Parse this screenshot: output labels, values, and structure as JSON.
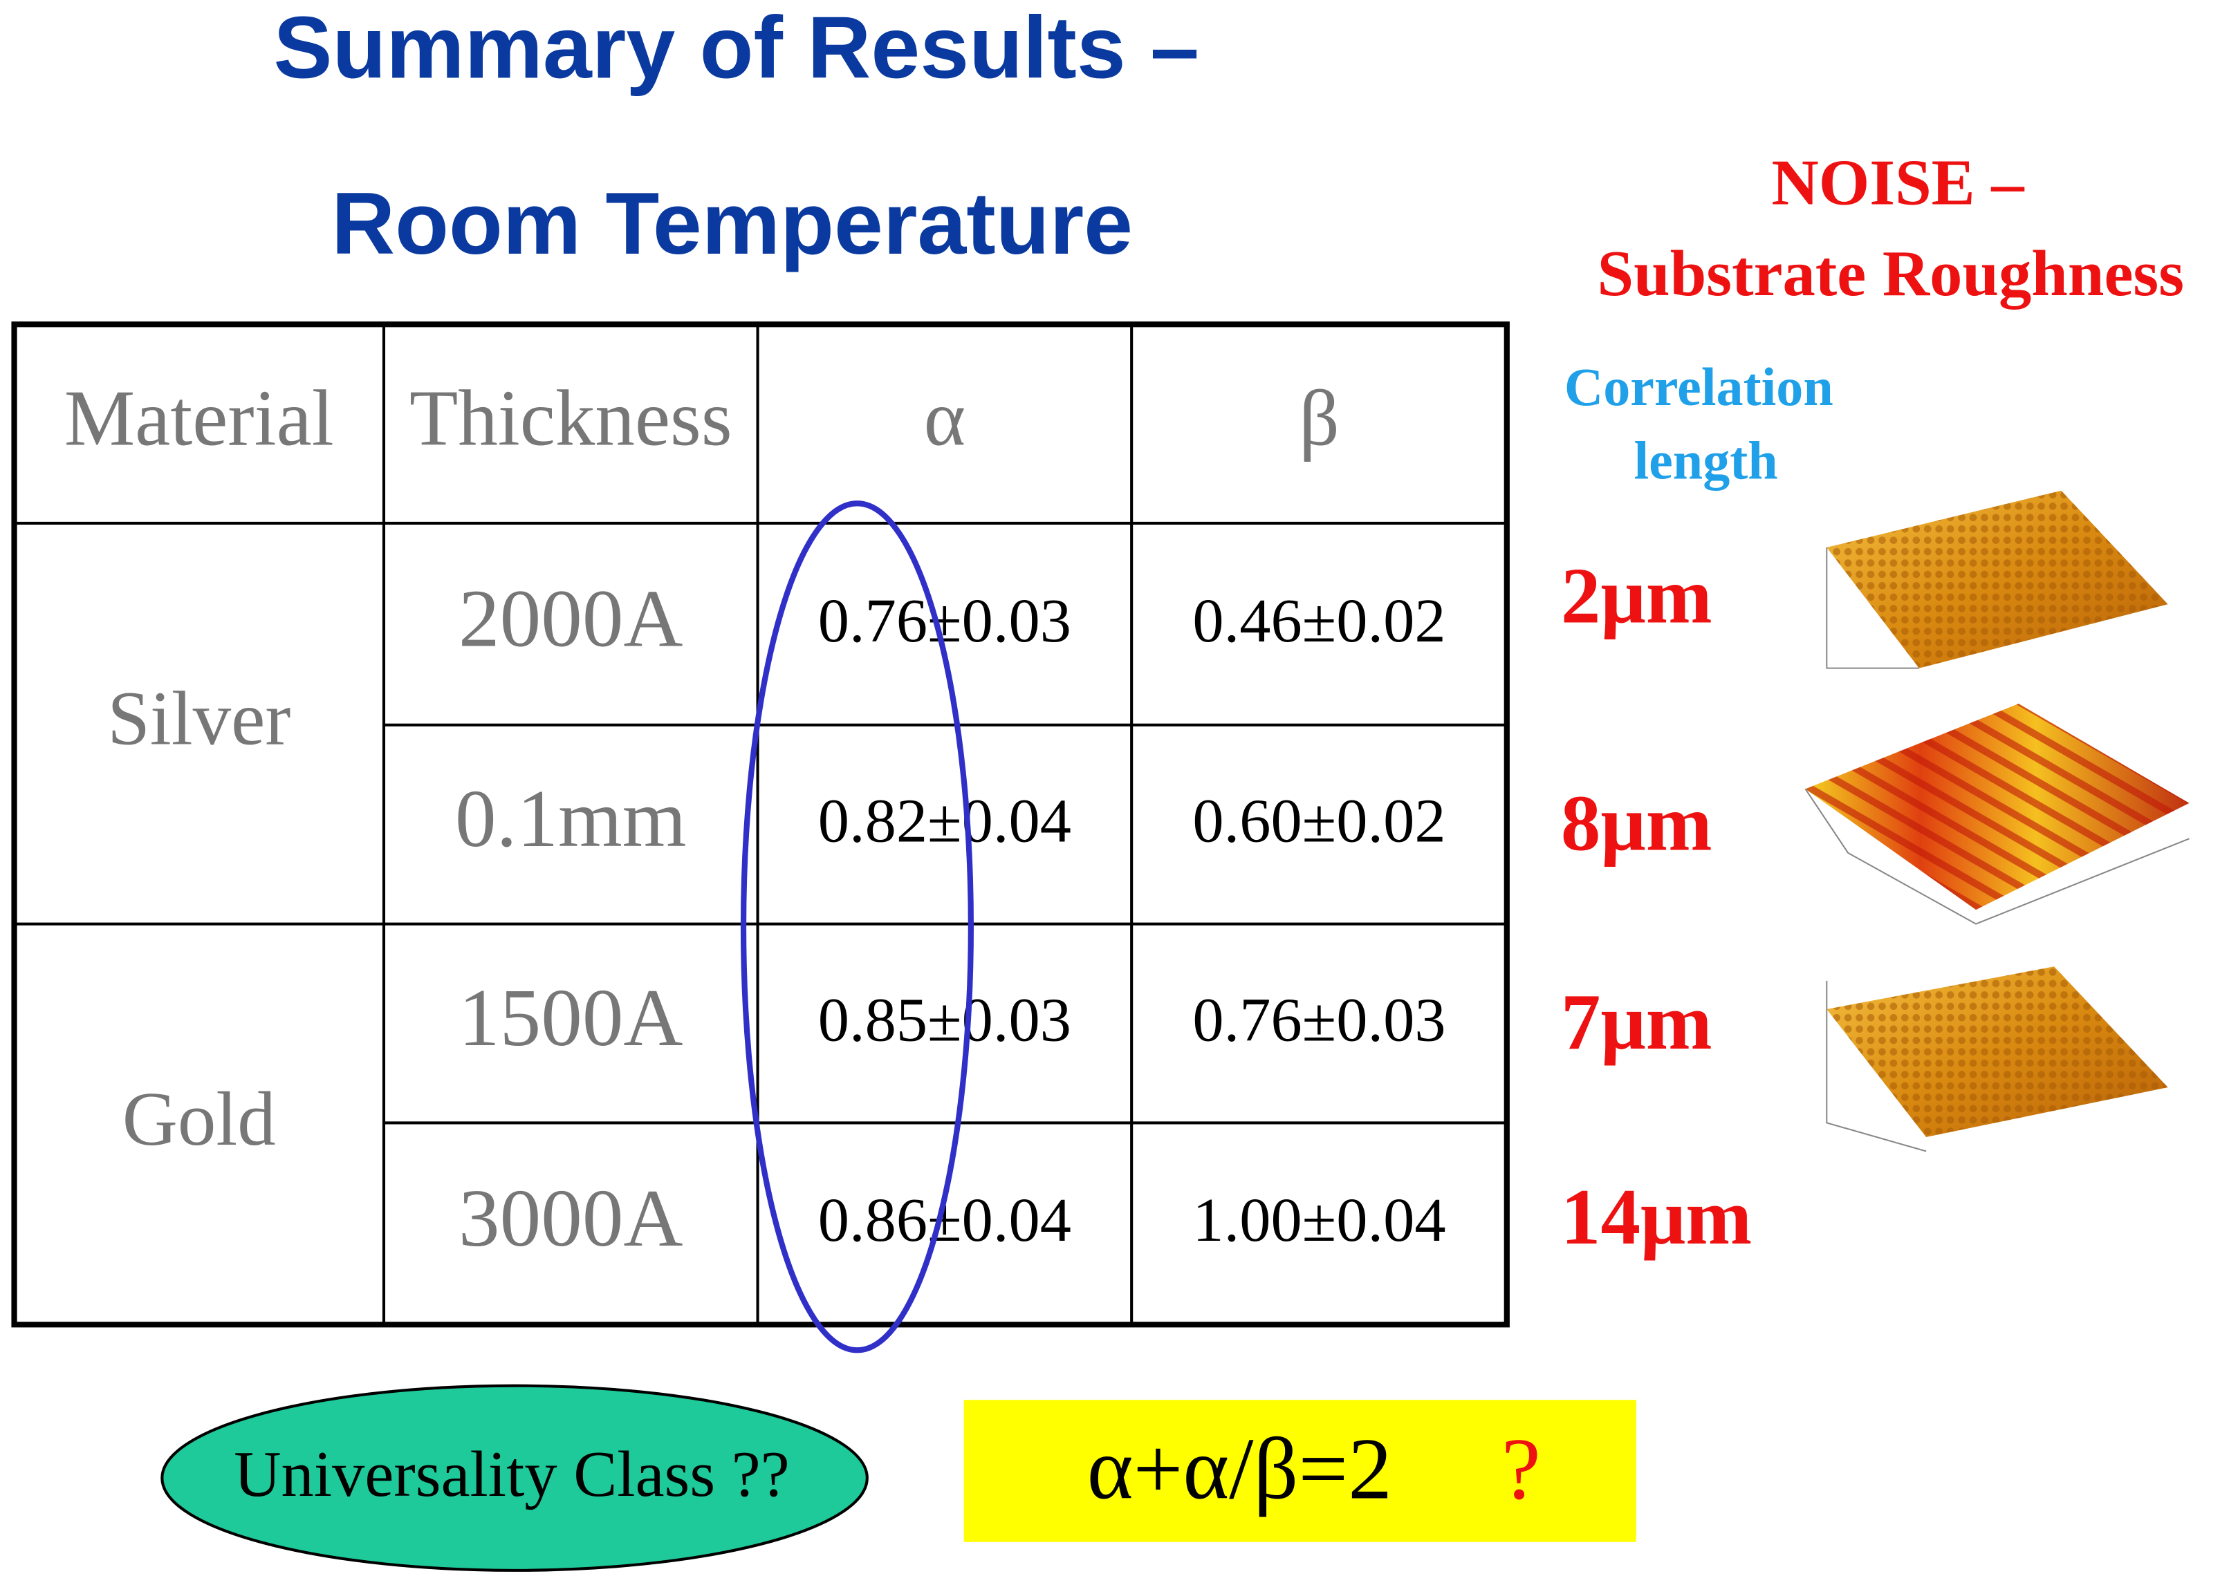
{
  "header": {
    "title_line1": "Summary of Results –",
    "title_line2": "Room Temperature"
  },
  "table": {
    "columns": [
      "Material",
      "Thickness",
      "α",
      "β"
    ],
    "groups": [
      {
        "material": "Silver",
        "rows": [
          [
            "2000A",
            "0.76±0.03",
            "0.46±0.02"
          ],
          [
            "0.1mm",
            "0.82±0.04",
            "0.60±0.02"
          ]
        ]
      },
      {
        "material": "Gold",
        "rows": [
          [
            "1500A",
            "0.85±0.03",
            "0.76±0.03"
          ],
          [
            "3000A",
            "0.86±0.04",
            "1.00±0.04"
          ]
        ]
      }
    ]
  },
  "noise": {
    "title": "NOISE –",
    "subtitle": "Substrate Roughness",
    "label_line1": "Correlation",
    "label_line2": "length",
    "lengths": [
      "2μm",
      "8μm",
      "7μm",
      "14μm"
    ]
  },
  "footer": {
    "universality": "Universality Class ??",
    "relation": "α+α/β=2",
    "question": "?"
  }
}
